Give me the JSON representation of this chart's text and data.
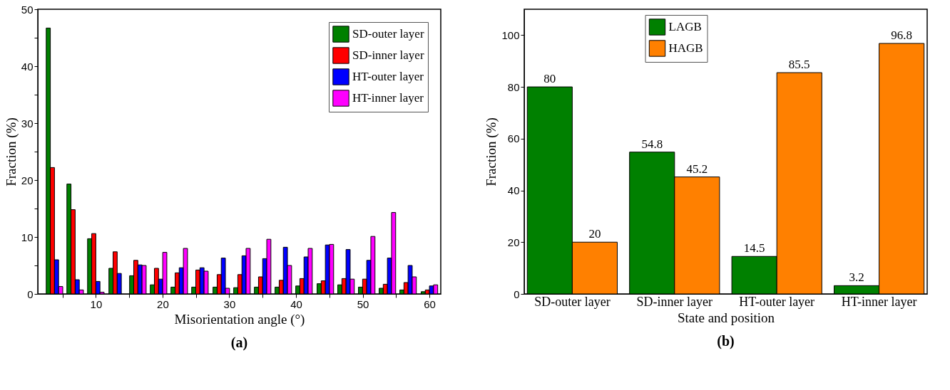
{
  "chart_data": [
    {
      "type": "bar",
      "title": "(a)",
      "xlabel": "Misorientation angle (°)",
      "ylabel": "Fraction (%)",
      "x": [
        3.8,
        6.9,
        10.0,
        13.2,
        16.3,
        19.4,
        22.5,
        25.6,
        28.8,
        31.9,
        35.0,
        38.1,
        41.2,
        44.4,
        47.5,
        50.6,
        53.7,
        56.8,
        60.0
      ],
      "series": [
        {
          "name": "SD-outer layer",
          "color": "#008000",
          "values": [
            46.7,
            19.3,
            9.7,
            4.5,
            3.2,
            1.6,
            1.2,
            1.2,
            1.2,
            1.1,
            1.2,
            1.2,
            1.4,
            1.8,
            1.6,
            1.2,
            1.0,
            0.7,
            0.4
          ]
        },
        {
          "name": "SD-inner layer",
          "color": "#ff0000",
          "values": [
            22.2,
            14.8,
            10.6,
            7.4,
            5.9,
            4.5,
            3.7,
            4.2,
            3.4,
            3.4,
            3.0,
            2.4,
            2.7,
            2.3,
            2.7,
            2.6,
            1.7,
            2.0,
            0.7
          ]
        },
        {
          "name": "HT-outer layer",
          "color": "#0000ff",
          "values": [
            6.0,
            2.5,
            2.2,
            3.6,
            5.1,
            2.6,
            4.6,
            4.6,
            6.3,
            6.7,
            6.2,
            8.2,
            6.5,
            8.6,
            7.8,
            5.9,
            6.3,
            5.0,
            1.4
          ]
        },
        {
          "name": "HT-inner layer",
          "color": "#ff00ff",
          "values": [
            1.3,
            0.7,
            0.3,
            null,
            5.0,
            7.3,
            8.0,
            4.0,
            1.0,
            8.0,
            9.6,
            5.0,
            8.0,
            8.7,
            2.6,
            10.1,
            14.3,
            3.0,
            1.6
          ]
        }
      ],
      "xlim": [
        1.3,
        61.7
      ],
      "xticks": [
        {
          "value": 5,
          "label": null
        },
        10,
        {
          "value": 15,
          "label": null
        },
        20,
        {
          "value": 25,
          "label": null
        },
        30,
        {
          "value": 35,
          "label": null
        },
        40,
        {
          "value": 45,
          "label": null
        },
        50,
        {
          "value": 55,
          "label": null
        },
        60
      ],
      "ylim": [
        0,
        50
      ],
      "yticks": [
        0,
        {
          "value": 5,
          "label": null
        },
        10,
        {
          "value": 15,
          "label": null
        },
        20,
        {
          "value": 25,
          "label": null
        },
        30,
        {
          "value": 35,
          "label": null
        },
        40,
        {
          "value": 45,
          "label": null
        },
        50
      ],
      "legend": "top right",
      "grid": false
    },
    {
      "type": "bar",
      "title": "(b)",
      "xlabel": "State and position",
      "ylabel": "Fraction (%)",
      "categories": [
        "SD-outer layer",
        "SD-inner layer",
        "HT-outer layer",
        "HT-inner layer"
      ],
      "series": [
        {
          "name": "LAGB",
          "color": "#008000",
          "values": [
            80,
            54.8,
            14.5,
            3.2
          ]
        },
        {
          "name": "HAGB",
          "color": "#ff8000",
          "values": [
            20,
            45.2,
            85.5,
            96.8
          ]
        }
      ],
      "ylim": [
        0,
        110
      ],
      "yticks": [
        0,
        20,
        40,
        60,
        80,
        100
      ],
      "data_labels": true,
      "legend": "top",
      "grid": false
    }
  ]
}
